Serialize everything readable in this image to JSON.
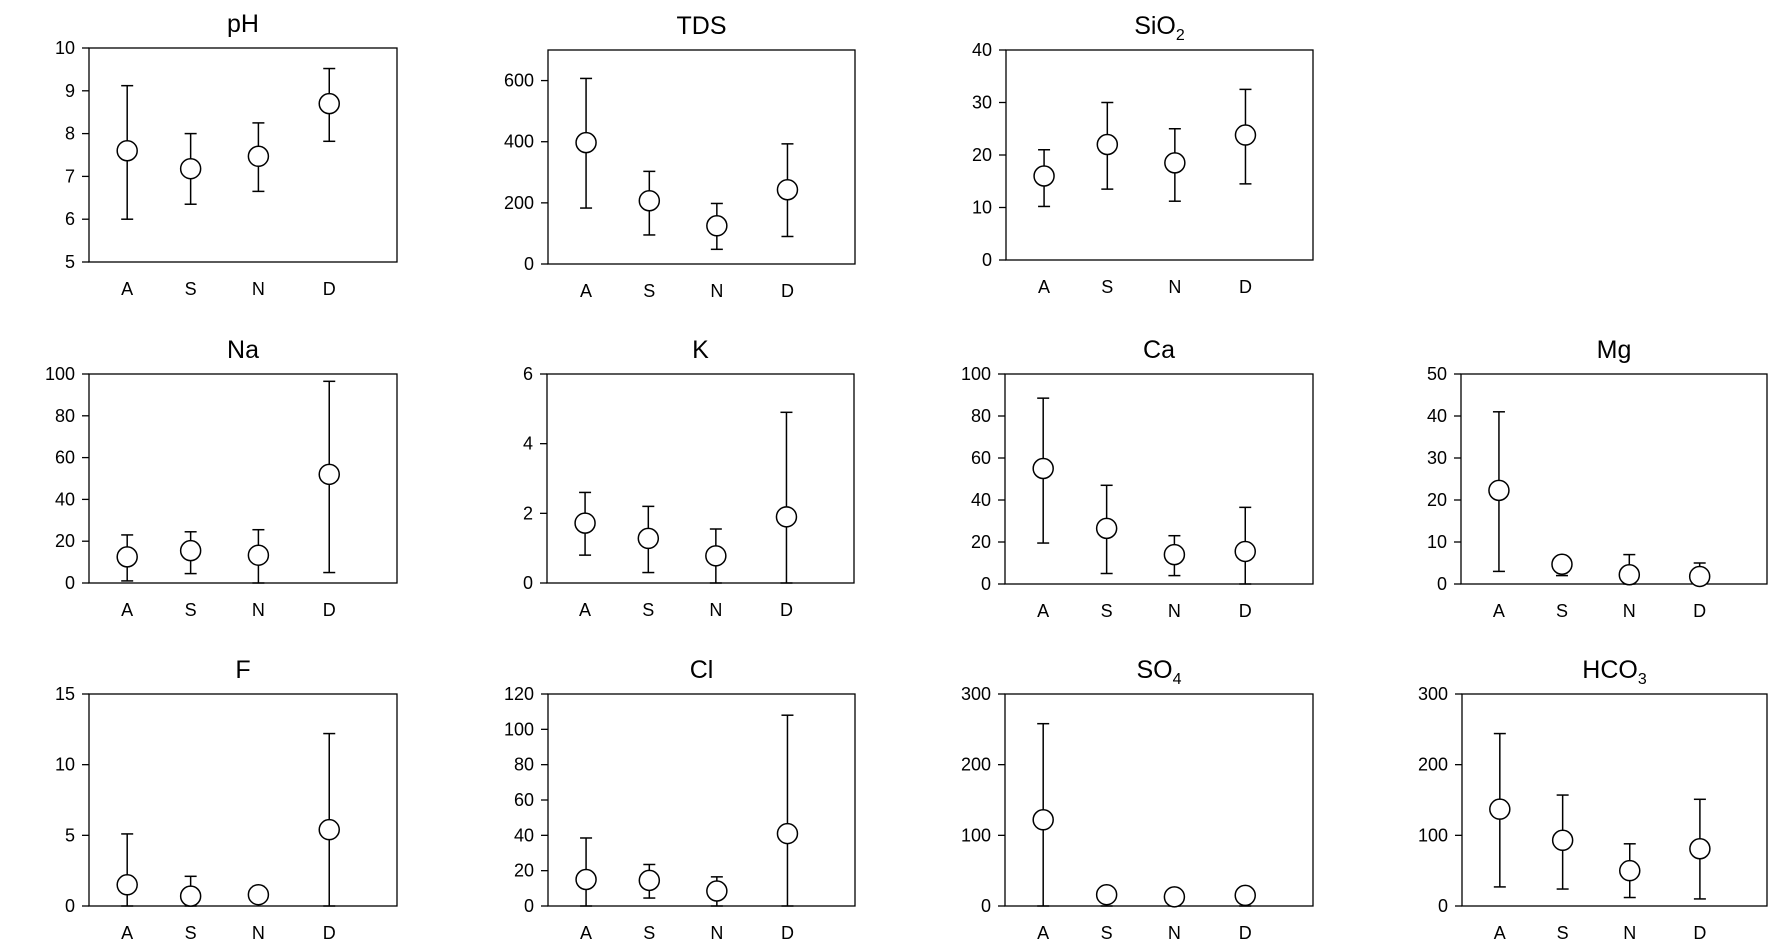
{
  "chart_data": [
    {
      "type": "scatter",
      "title": "pH",
      "title_sub": "",
      "categories": [
        "A",
        "S",
        "N",
        "D"
      ],
      "ylim": [
        5,
        10
      ],
      "yticks": [
        5,
        6,
        7,
        8,
        9,
        10
      ],
      "series": [
        {
          "mean": [
            7.6,
            7.18,
            7.47,
            8.7
          ],
          "lower": [
            6.0,
            6.35,
            6.65,
            7.82
          ],
          "upper": [
            9.12,
            8.0,
            8.25,
            9.52
          ]
        }
      ]
    },
    {
      "type": "scatter",
      "title": "TDS",
      "title_sub": "",
      "categories": [
        "A",
        "S",
        "N",
        "D"
      ],
      "ylim": [
        0,
        700
      ],
      "yticks": [
        0,
        200,
        400,
        600
      ],
      "series": [
        {
          "mean": [
            397,
            207,
            125,
            243
          ],
          "lower": [
            183,
            95,
            48,
            90
          ],
          "upper": [
            607,
            303,
            198,
            393
          ]
        }
      ]
    },
    {
      "type": "scatter",
      "title": "SiO",
      "title_sub": "2",
      "categories": [
        "A",
        "S",
        "N",
        "D"
      ],
      "ylim": [
        0,
        40
      ],
      "yticks": [
        0,
        10,
        20,
        30,
        40
      ],
      "series": [
        {
          "mean": [
            16,
            22,
            18.5,
            23.8
          ],
          "lower": [
            10.2,
            13.5,
            11.2,
            14.5
          ],
          "upper": [
            21,
            30,
            25,
            32.5
          ]
        }
      ]
    },
    {
      "type": "scatter",
      "title": "Na",
      "title_sub": "",
      "categories": [
        "A",
        "S",
        "N",
        "D"
      ],
      "ylim": [
        0,
        100
      ],
      "yticks": [
        0,
        20,
        40,
        60,
        80,
        100
      ],
      "series": [
        {
          "mean": [
            12.5,
            15.5,
            13.3,
            52
          ],
          "lower": [
            1,
            4.5,
            0,
            5
          ],
          "upper": [
            23,
            24.5,
            25.5,
            96.5
          ]
        }
      ]
    },
    {
      "type": "scatter",
      "title": "K",
      "title_sub": "",
      "categories": [
        "A",
        "S",
        "N",
        "D"
      ],
      "ylim": [
        0,
        6
      ],
      "yticks": [
        0,
        2,
        4,
        6
      ],
      "series": [
        {
          "mean": [
            1.72,
            1.28,
            0.78,
            1.9
          ],
          "lower": [
            0.8,
            0.3,
            0,
            0
          ],
          "upper": [
            2.6,
            2.2,
            1.55,
            4.9
          ]
        }
      ]
    },
    {
      "type": "scatter",
      "title": "Ca",
      "title_sub": "",
      "categories": [
        "A",
        "S",
        "N",
        "D"
      ],
      "ylim": [
        0,
        100
      ],
      "yticks": [
        0,
        20,
        40,
        60,
        80,
        100
      ],
      "series": [
        {
          "mean": [
            55,
            26.5,
            14,
            15.5
          ],
          "lower": [
            19.5,
            5,
            4,
            0
          ],
          "upper": [
            88.5,
            47,
            23,
            36.5
          ]
        }
      ]
    },
    {
      "type": "scatter",
      "title": "Mg",
      "title_sub": "",
      "categories": [
        "A",
        "S",
        "N",
        "D"
      ],
      "ylim": [
        0,
        50
      ],
      "yticks": [
        0,
        10,
        20,
        30,
        40,
        50
      ],
      "series": [
        {
          "mean": [
            22.3,
            4.7,
            2.2,
            1.8
          ],
          "lower": [
            3,
            2,
            0,
            0
          ],
          "upper": [
            41,
            6.5,
            7,
            5
          ]
        }
      ]
    },
    {
      "type": "scatter",
      "title": "F",
      "title_sub": "",
      "categories": [
        "A",
        "S",
        "N",
        "D"
      ],
      "ylim": [
        0,
        15
      ],
      "yticks": [
        0,
        5,
        10,
        15
      ],
      "series": [
        {
          "mean": [
            1.5,
            0.7,
            0.8,
            5.4
          ],
          "lower": [
            0,
            0,
            0.4,
            0
          ],
          "upper": [
            5.1,
            2.1,
            1.4,
            12.2
          ]
        }
      ]
    },
    {
      "type": "scatter",
      "title": "Cl",
      "title_sub": "",
      "categories": [
        "A",
        "S",
        "N",
        "D"
      ],
      "ylim": [
        0,
        120
      ],
      "yticks": [
        0,
        20,
        40,
        60,
        80,
        100,
        120
      ],
      "series": [
        {
          "mean": [
            15,
            14.5,
            8.5,
            41
          ],
          "lower": [
            0,
            4.5,
            0,
            0
          ],
          "upper": [
            38.5,
            23.5,
            16.5,
            108
          ]
        }
      ]
    },
    {
      "type": "scatter",
      "title": "SO",
      "title_sub": "4",
      "categories": [
        "A",
        "S",
        "N",
        "D"
      ],
      "ylim": [
        0,
        300
      ],
      "yticks": [
        0,
        100,
        200,
        300
      ],
      "series": [
        {
          "mean": [
            122,
            16,
            13,
            15
          ],
          "lower": [
            0,
            0,
            0,
            0
          ],
          "upper": [
            258,
            26,
            21,
            23
          ]
        }
      ]
    },
    {
      "type": "scatter",
      "title": "HCO",
      "title_sub": "3",
      "categories": [
        "A",
        "S",
        "N",
        "D"
      ],
      "ylim": [
        0,
        300
      ],
      "yticks": [
        0,
        100,
        200,
        300
      ],
      "series": [
        {
          "mean": [
            137,
            93,
            50,
            81
          ],
          "lower": [
            27,
            24,
            12,
            10
          ],
          "upper": [
            244,
            157,
            88,
            151
          ]
        }
      ]
    }
  ]
}
